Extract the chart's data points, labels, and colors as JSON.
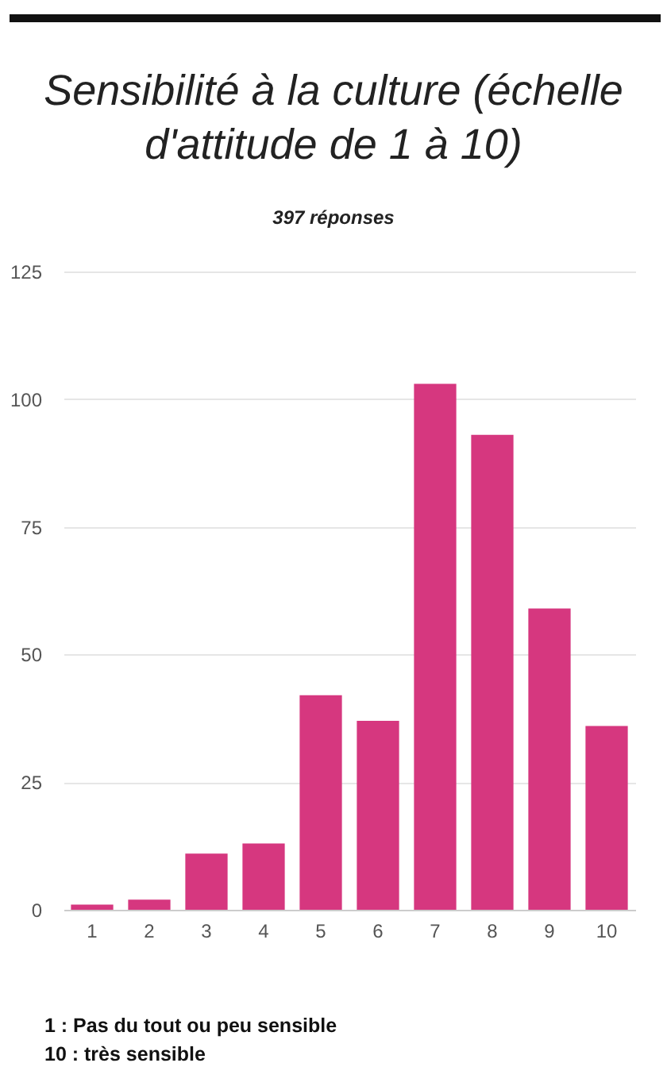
{
  "chart_data": {
    "type": "bar",
    "title": "Sensibilité à la culture (échelle d'attitude de 1 à 10)",
    "subtitle": "397 réponses",
    "categories": [
      "1",
      "2",
      "3",
      "4",
      "5",
      "6",
      "7",
      "8",
      "9",
      "10"
    ],
    "values": [
      1,
      2,
      11,
      13,
      42,
      37,
      103,
      93,
      59,
      36
    ],
    "color": "#d6377f",
    "ylim": [
      0,
      125
    ],
    "yticks": [
      0,
      25,
      50,
      75,
      100,
      125
    ],
    "grid": "y",
    "annotations": [
      "1 : Pas du tout ou peu sensible",
      "10 : très sensible"
    ]
  }
}
